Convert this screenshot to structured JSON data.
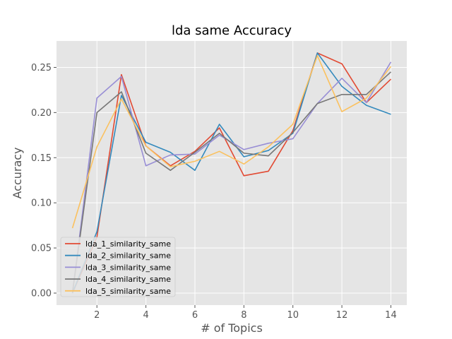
{
  "chart_data": {
    "type": "line",
    "title": "lda same Accuracy",
    "xlabel": "# of Topics",
    "ylabel": "Accuracy",
    "xlim": [
      0.35,
      14.65
    ],
    "ylim": [
      -0.0133,
      0.2793
    ],
    "x_ticks": [
      2,
      4,
      6,
      8,
      10,
      12,
      14
    ],
    "x_tick_labels": [
      "2",
      "4",
      "6",
      "8",
      "10",
      "12",
      "14"
    ],
    "y_ticks": [
      0.0,
      0.05,
      0.1,
      0.15,
      0.2,
      0.25
    ],
    "y_tick_labels": [
      "0.00",
      "0.05",
      "0.10",
      "0.15",
      "0.20",
      "0.25"
    ],
    "grid": true,
    "legend_position": "lower-left",
    "x": [
      1,
      2,
      3,
      4,
      5,
      6,
      7,
      8,
      9,
      10,
      11,
      12,
      13,
      14
    ],
    "series": [
      {
        "name": "lda_1_similarity_same",
        "color": "#E24A33",
        "values": [
          0.0,
          0.062,
          0.242,
          0.163,
          0.141,
          0.157,
          0.183,
          0.13,
          0.135,
          0.18,
          0.266,
          0.254,
          0.211,
          0.237
        ]
      },
      {
        "name": "lda_2_similarity_same",
        "color": "#348ABD",
        "values": [
          0.0,
          0.068,
          0.219,
          0.167,
          0.156,
          0.136,
          0.187,
          0.151,
          0.158,
          0.177,
          0.266,
          0.229,
          0.208,
          0.198
        ]
      },
      {
        "name": "lda_3_similarity_same",
        "color": "#988ED5",
        "values": [
          0.0,
          0.216,
          0.24,
          0.141,
          0.153,
          0.154,
          0.175,
          0.159,
          0.166,
          0.171,
          0.21,
          0.238,
          0.211,
          0.256
        ]
      },
      {
        "name": "lda_4_similarity_same",
        "color": "#777777",
        "values": [
          0.0,
          0.2,
          0.223,
          0.155,
          0.136,
          0.156,
          0.177,
          0.155,
          0.152,
          0.178,
          0.21,
          0.22,
          0.22,
          0.245
        ]
      },
      {
        "name": "lda_5_similarity_same",
        "color": "#FBC15E",
        "values": [
          0.072,
          0.162,
          0.215,
          0.163,
          0.14,
          0.146,
          0.157,
          0.143,
          0.162,
          0.187,
          0.263,
          0.201,
          0.216,
          0.251
        ]
      }
    ]
  }
}
